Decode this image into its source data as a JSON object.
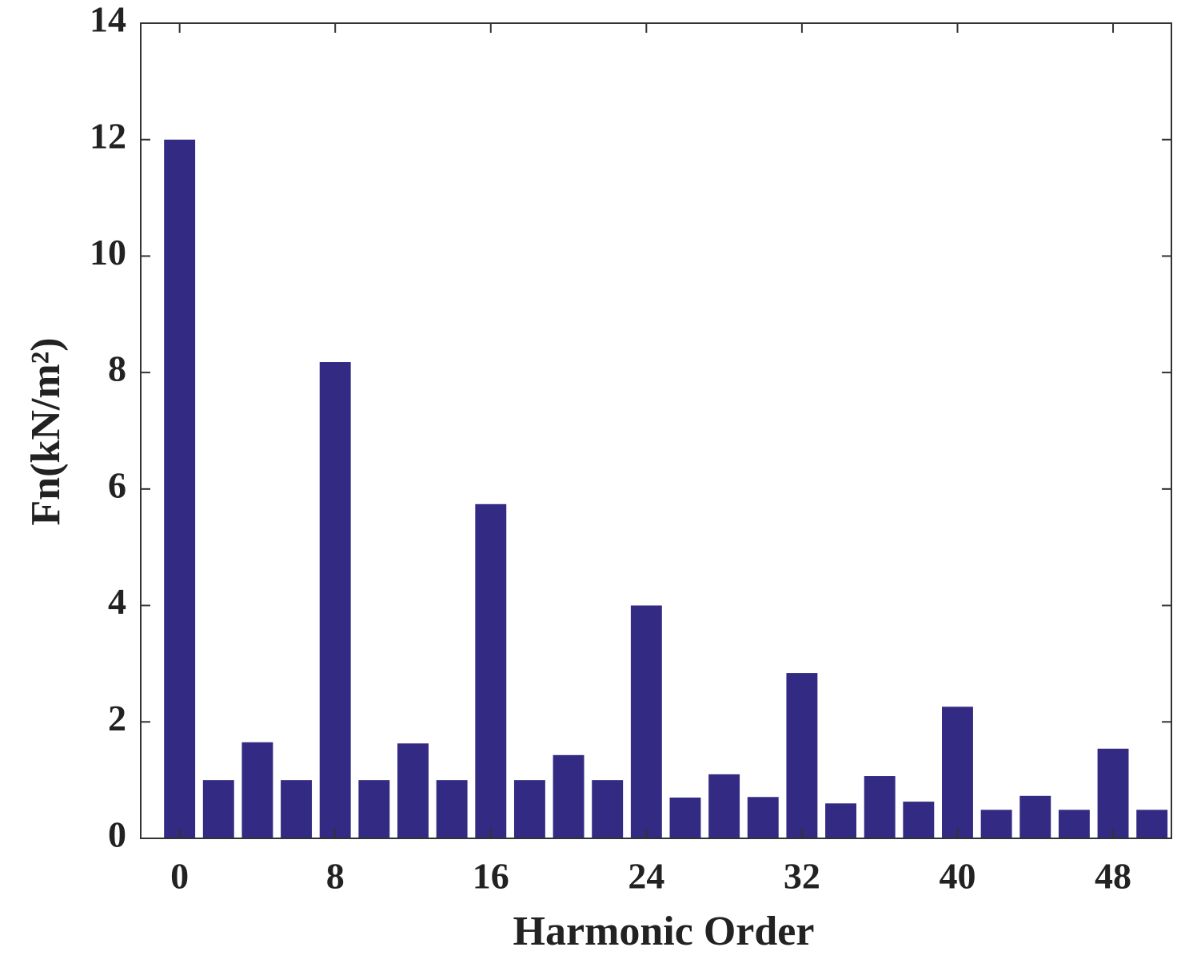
{
  "chart_data": {
    "type": "bar",
    "xlabel": "Harmonic Order",
    "ylabel": "Fn(kN/m²)",
    "x": [
      0,
      2,
      4,
      6,
      8,
      10,
      12,
      14,
      16,
      18,
      20,
      22,
      24,
      26,
      28,
      30,
      32,
      34,
      36,
      38,
      40,
      42,
      44,
      46,
      48,
      50
    ],
    "values": [
      12.0,
      1.0,
      1.65,
      1.0,
      8.18,
      1.0,
      1.63,
      1.0,
      5.74,
      1.0,
      1.43,
      1.0,
      4.0,
      0.7,
      1.1,
      0.71,
      2.84,
      0.6,
      1.07,
      0.63,
      2.26,
      0.49,
      0.73,
      0.49,
      1.54,
      0.49
    ],
    "color": "#332a84",
    "xlim": [
      -2,
      51
    ],
    "ylim": [
      0,
      14
    ],
    "xticks": [
      0,
      8,
      16,
      24,
      32,
      40,
      48
    ],
    "yticks": [
      0,
      2,
      4,
      6,
      8,
      10,
      12,
      14
    ],
    "grid": false
  }
}
